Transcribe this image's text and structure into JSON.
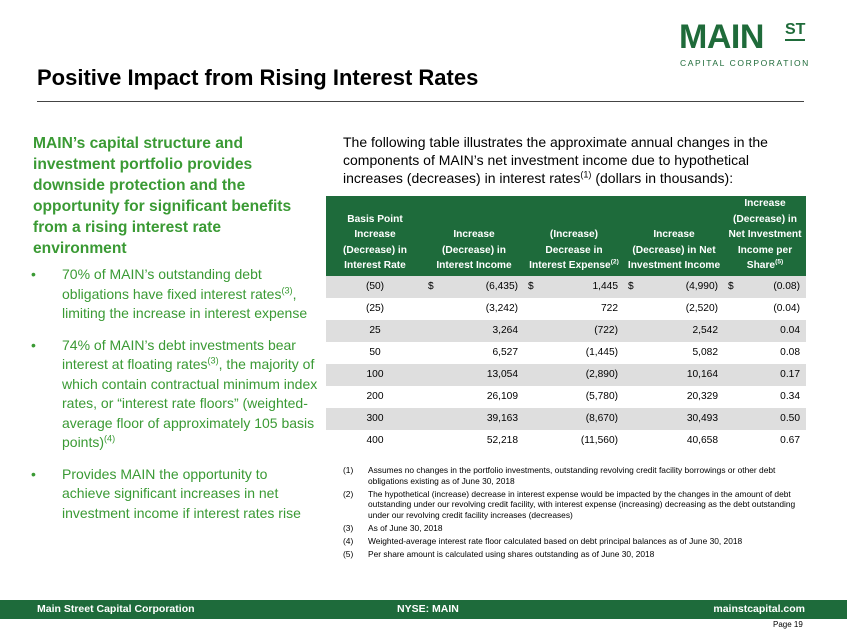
{
  "logo": {
    "main": "MAIN",
    "st": "ST",
    "sub": "CAPITAL CORPORATION"
  },
  "title": "Positive Impact from Rising Interest Rates",
  "left": {
    "heading": "MAIN’s capital structure and investment portfolio provides downside protection and the opportunity for significant benefits from a rising interest rate environment",
    "bullets": [
      {
        "text": "70% of MAIN’s outstanding debt obligations have fixed interest rates",
        "sup": "(3)",
        "tail": ", limiting the increase in interest expense"
      },
      {
        "text": "74% of MAIN’s debt investments bear interest at floating rates",
        "sup": "(3)",
        "tail": ", the majority of which contain contractual minimum index rates, or “interest rate floors” (weighted-average floor of approximately 105 basis points)",
        "sup2": "(4)"
      },
      {
        "text": "Provides MAIN the opportunity to achieve significant increases in net investment income if interest rates rise"
      }
    ]
  },
  "intro": {
    "text": "The following table illustrates the approximate annual changes in the components of MAIN’s net investment income due to hypothetical increases (decreases) in interest rates",
    "sup": "(1)",
    "tail": " (dollars in thousands):"
  },
  "table": {
    "headers": [
      {
        "text": "Basis Point Increase (Decrease) in Interest Rate"
      },
      {
        "text": "Increase (Decrease) in Interest Income"
      },
      {
        "text": "(Increase) Decrease in Interest Expense",
        "sup": "(2)"
      },
      {
        "text": "Increase (Decrease) in Net Investment Income"
      },
      {
        "text": "Increase (Decrease) in Net Investment Income per Share",
        "sup": "(5)"
      }
    ],
    "rows": [
      {
        "bp": "(50)",
        "income": "(6,435)",
        "expense": "1,445",
        "nii": "(4,990)",
        "per_share": "(0.08)",
        "currency": "$"
      },
      {
        "bp": "(25)",
        "income": "(3,242)",
        "expense": "722",
        "nii": "(2,520)",
        "per_share": "(0.04)"
      },
      {
        "bp": "25",
        "income": "3,264",
        "expense": "(722)",
        "nii": "2,542",
        "per_share": "0.04"
      },
      {
        "bp": "50",
        "income": "6,527",
        "expense": "(1,445)",
        "nii": "5,082",
        "per_share": "0.08"
      },
      {
        "bp": "100",
        "income": "13,054",
        "expense": "(2,890)",
        "nii": "10,164",
        "per_share": "0.17"
      },
      {
        "bp": "200",
        "income": "26,109",
        "expense": "(5,780)",
        "nii": "20,329",
        "per_share": "0.34"
      },
      {
        "bp": "300",
        "income": "39,163",
        "expense": "(8,670)",
        "nii": "30,493",
        "per_share": "0.50"
      },
      {
        "bp": "400",
        "income": "52,218",
        "expense": "(11,560)",
        "nii": "40,658",
        "per_share": "0.67"
      }
    ]
  },
  "footnotes": [
    {
      "num": "(1)",
      "text": "Assumes no changes in the portfolio investments, outstanding revolving credit facility borrowings or other debt obligations existing as of June 30, 2018"
    },
    {
      "num": "(2)",
      "text": "The hypothetical (increase) decrease in interest expense would be impacted by the changes in the amount of debt outstanding under our revolving credit facility, with interest expense (increasing) decreasing as the debt outstanding under our revolving credit facility increases (decreases)"
    },
    {
      "num": "(3)",
      "text": "As of June 30, 2018"
    },
    {
      "num": "(4)",
      "text": "Weighted-average interest rate floor calculated based on debt principal balances as of June 30, 2018"
    },
    {
      "num": "(5)",
      "text": "Per share amount is calculated using shares outstanding as of June 30, 2018"
    }
  ],
  "footer": {
    "company": "Main Street Capital Corporation",
    "ticker": "NYSE: MAIN",
    "website": "mainstcapital.com",
    "page": "Page 19"
  },
  "colors": {
    "brand_green": "#1e6b3b",
    "accent_green": "#3a9a34",
    "row_shade": "#dedede"
  }
}
